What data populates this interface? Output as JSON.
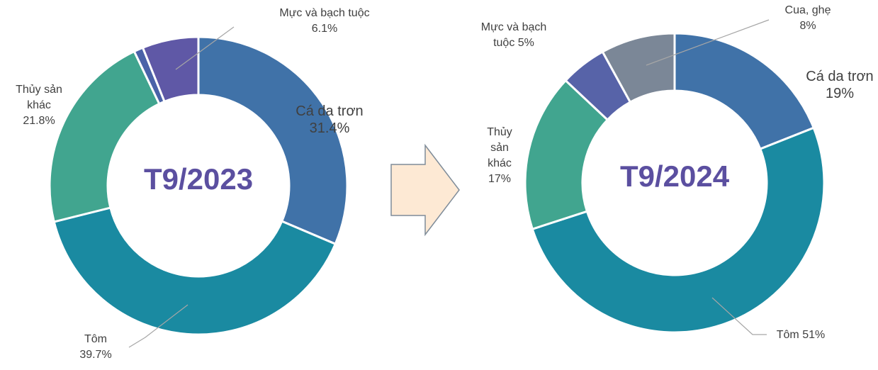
{
  "chart_data": [
    {
      "type": "donut",
      "title": "T9/2023",
      "categories": [
        "Cá da trơn",
        "Tôm",
        "Thủy sản khác",
        null,
        "Mực và bạch tuộc"
      ],
      "values": [
        31.4,
        39.7,
        21.8,
        1.0,
        6.1
      ],
      "value_labels": [
        "31.4%",
        "39.7%",
        "21.8%",
        null,
        "6.1%"
      ],
      "colors": [
        "#4072a8",
        "#1a8aa1",
        "#41a58f",
        "#4a62a8",
        "#5f58a6"
      ]
    },
    {
      "type": "donut",
      "title": "T9/2024",
      "categories": [
        "Cá da trơn",
        "Tôm",
        "Thủy sản khác",
        "Mực và bạch tuộc",
        "Cua, ghẹ"
      ],
      "values": [
        19,
        51,
        17,
        5,
        8
      ],
      "value_labels": [
        "19%",
        "51%",
        "17%",
        "5%",
        "8%"
      ],
      "colors": [
        "#4072a8",
        "#1a8aa1",
        "#41a58f",
        "#5763a8",
        "#7b8797"
      ]
    }
  ]
}
